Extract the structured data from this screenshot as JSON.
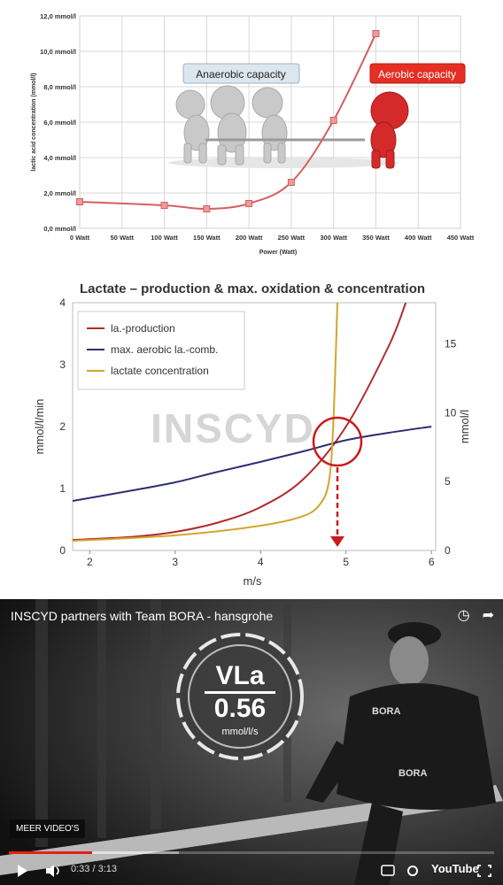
{
  "chart_data": [
    {
      "type": "line",
      "x": [
        0,
        100,
        150,
        200,
        250,
        300,
        350
      ],
      "values": [
        1.5,
        1.3,
        1.1,
        1.4,
        2.6,
        6.1,
        11.0
      ],
      "xticks": [
        "0 Watt",
        "50 Watt",
        "100 Watt",
        "150 Watt",
        "200 Watt",
        "250 Watt",
        "300 Watt",
        "350 Watt",
        "400 Watt",
        "450 Watt"
      ],
      "yticks": [
        "0,0 mmol/l",
        "2,0 mmol/l",
        "4,0 mmol/l",
        "6,0 mmol/l",
        "8,0 mmol/l",
        "10,0 mmol/l",
        "12,0 mmol/l"
      ],
      "xlim": [
        0,
        450
      ],
      "ylim": [
        0,
        12
      ],
      "xlabel": "Power (Watt)",
      "ylabel": "lactic acid concentration (mmol/l)",
      "grid": true,
      "color": "#d45f5f",
      "annotations": [
        "Anaerobic capacity",
        "Aerobic capacity"
      ]
    },
    {
      "type": "line",
      "title": "Lactate – production & max. oxidation & concentration",
      "xlabel": "m/s",
      "ylabel": "mmol/l/min",
      "ylabel_right": "mmol/l",
      "xlim": [
        1.8,
        6.05
      ],
      "ylim": [
        0,
        4
      ],
      "ylim_right": [
        0,
        18
      ],
      "xticks": [
        "2",
        "3",
        "4",
        "5",
        "6"
      ],
      "yticks": [
        "0",
        "1",
        "2",
        "3",
        "4"
      ],
      "yticks_right": [
        "0",
        "5",
        "10",
        "15"
      ],
      "legend": "top-left",
      "watermark": "INSCYD",
      "series": [
        {
          "name": "la.-production",
          "color": "#b22a2a",
          "axis": "left",
          "x": [
            1.8,
            2.5,
            3,
            3.5,
            4,
            4.5,
            5,
            5.5,
            5.7
          ],
          "values": [
            0.17,
            0.22,
            0.3,
            0.45,
            0.7,
            1.15,
            2.0,
            3.3,
            4.0
          ]
        },
        {
          "name": "max. aerobic la.-comb.",
          "color": "#2e2e72",
          "axis": "left",
          "x": [
            1.8,
            2.5,
            3,
            3.5,
            4,
            4.5,
            5,
            5.5,
            6
          ],
          "values": [
            0.8,
            0.97,
            1.1,
            1.27,
            1.43,
            1.6,
            1.78,
            1.9,
            2.0
          ]
        },
        {
          "name": "lactate concentration",
          "color": "#d4a52c",
          "axis": "right",
          "x": [
            1.8,
            3,
            4,
            4.5,
            4.7,
            4.8,
            4.85,
            4.9
          ],
          "values": [
            0.7,
            1.1,
            1.8,
            2.5,
            3.4,
            5.0,
            9.0,
            18.0
          ]
        }
      ]
    }
  ],
  "video": {
    "title": "INSCYD partners with Team BORA - hansgrohe",
    "badge_name": "VLa",
    "badge_value": "0.56",
    "badge_unit": "mmol/l/s",
    "more_videos": "MEER VIDEO'S",
    "time": "0:33 / 3:13",
    "brand": "YouTube",
    "progress": 0.172,
    "buffered": 0.35
  }
}
